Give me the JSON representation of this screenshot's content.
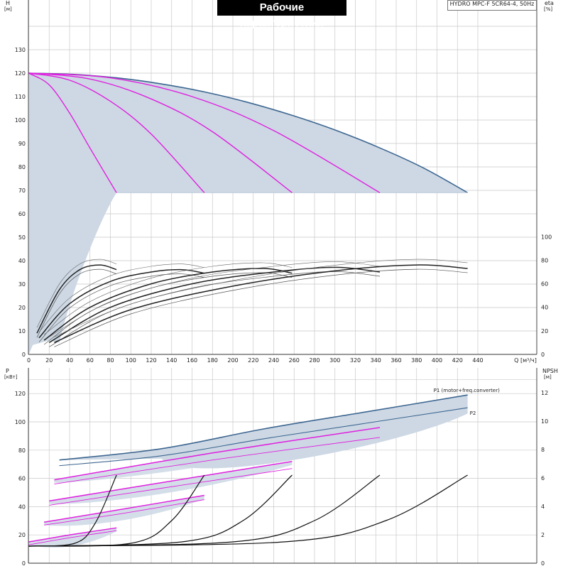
{
  "chart_data": [
    {
      "type": "line",
      "title": "Рабочие характеристики",
      "model_label": "HYDRO MPC-F 5CR64-4, 50Hz",
      "x_label": "Q",
      "x_unit": "[м³/ч]",
      "x_ticks": [
        0,
        20,
        40,
        60,
        80,
        100,
        120,
        140,
        160,
        180,
        200,
        220,
        240,
        260,
        280,
        300,
        320,
        340,
        360,
        380,
        400,
        420,
        440
      ],
      "xlim": [
        0,
        450
      ],
      "y_left_label": "H",
      "y_left_unit": "[м]",
      "y_left_ticks": [
        0,
        10,
        20,
        30,
        40,
        50,
        60,
        70,
        80,
        90,
        100,
        110,
        120,
        130
      ],
      "y_left_lim": [
        0,
        140
      ],
      "y_right_label": "eta",
      "y_right_unit": "[%]",
      "y_right_ticks": [
        0,
        20,
        40,
        60,
        80,
        100
      ],
      "y_right_lim": [
        0,
        100
      ],
      "grid": true,
      "colors": {
        "envelope": "#3d6690",
        "fill": "#cdd8e4",
        "variable": "#e020e0",
        "eta": "#222222"
      },
      "head_envelope": {
        "x": [
          0,
          43,
          86,
          129,
          172,
          215,
          258,
          301,
          344,
          387,
          430
        ],
        "y": [
          120,
          119.5,
          118,
          115.5,
          112,
          107.5,
          102,
          95.6,
          88.1,
          79.5,
          69
        ]
      },
      "head_min": 69,
      "pump_curves": [
        {
          "x": [
            0,
            20,
            40,
            60,
            86
          ],
          "y": [
            120,
            115,
            103,
            88,
            69
          ]
        },
        {
          "x": [
            0,
            40,
            80,
            120,
            172
          ],
          "y": [
            120,
            117,
            108,
            94,
            69
          ]
        },
        {
          "x": [
            0,
            60,
            120,
            180,
            258
          ],
          "y": [
            120,
            117.5,
            109,
            95,
            69
          ]
        },
        {
          "x": [
            0,
            80,
            160,
            240,
            344
          ],
          "y": [
            120,
            118,
            110,
            95.5,
            69
          ]
        }
      ],
      "eta_curves": [
        {
          "x": [
            8,
            30,
            50,
            70,
            86
          ],
          "y": [
            18,
            55,
            72,
            76,
            72
          ]
        },
        {
          "x": [
            10,
            40,
            80,
            120,
            150,
            172
          ],
          "y": [
            14,
            43,
            62,
            70,
            72,
            69
          ]
        },
        {
          "x": [
            15,
            60,
            120,
            180,
            230,
            258
          ],
          "y": [
            12,
            40,
            60,
            70,
            73,
            69
          ]
        },
        {
          "x": [
            20,
            80,
            160,
            240,
            300,
            344
          ],
          "y": [
            10,
            40,
            60,
            70,
            74,
            70
          ]
        },
        {
          "x": [
            25,
            100,
            200,
            300,
            380,
            430
          ],
          "y": [
            10,
            38,
            58,
            71,
            76,
            73
          ]
        }
      ]
    },
    {
      "type": "line",
      "x_ticks": [
        0,
        20,
        40,
        60,
        80,
        100,
        120,
        140,
        160,
        180,
        200,
        220,
        240,
        260,
        280,
        300,
        320,
        340,
        360,
        380,
        400,
        420,
        440
      ],
      "xlim": [
        0,
        450
      ],
      "y_left_label": "P",
      "y_left_unit": "[кВт]",
      "y_left_ticks": [
        0,
        20,
        40,
        60,
        80,
        100,
        120
      ],
      "y_left_lim": [
        0,
        130
      ],
      "y_right_label": "NPSH",
      "y_right_unit": "[м]",
      "y_right_ticks": [
        0,
        2,
        4,
        6,
        8,
        10,
        12
      ],
      "y_right_lim": [
        0,
        13
      ],
      "grid": true,
      "series": [
        {
          "name": "P1 (motor+freq.converter)",
          "x": [
            30,
            130,
            230,
            330,
            430
          ],
          "y": [
            73,
            81,
            95,
            107,
            119
          ]
        },
        {
          "name": "P2",
          "x": [
            30,
            130,
            230,
            330,
            430
          ],
          "y": [
            69,
            76,
            88,
            99,
            110
          ]
        }
      ],
      "power_curves_variable": [
        {
          "x": [
            0,
            40,
            86
          ],
          "y": [
            15,
            20,
            25
          ]
        },
        {
          "x": [
            0,
            40,
            86
          ],
          "y": [
            13,
            18,
            23
          ]
        },
        {
          "x": [
            15,
            90,
            172
          ],
          "y": [
            29,
            38,
            48
          ]
        },
        {
          "x": [
            15,
            90,
            172
          ],
          "y": [
            27,
            35,
            45
          ]
        },
        {
          "x": [
            20,
            130,
            258
          ],
          "y": [
            44,
            57,
            72
          ]
        },
        {
          "x": [
            20,
            130,
            258
          ],
          "y": [
            41,
            53,
            67
          ]
        },
        {
          "x": [
            25,
            180,
            344
          ],
          "y": [
            59,
            78,
            96
          ]
        },
        {
          "x": [
            25,
            180,
            344
          ],
          "y": [
            56,
            73,
            89
          ]
        }
      ],
      "npsh_curves": [
        {
          "x": [
            0,
            45,
            65,
            86
          ],
          "y": [
            1.2,
            1.4,
            2.8,
            6.2
          ]
        },
        {
          "x": [
            0,
            100,
            140,
            172
          ],
          "y": [
            1.2,
            1.4,
            3.0,
            6.2
          ]
        },
        {
          "x": [
            0,
            150,
            210,
            258
          ],
          "y": [
            1.2,
            1.5,
            3.0,
            6.2
          ]
        },
        {
          "x": [
            0,
            200,
            280,
            344
          ],
          "y": [
            1.2,
            1.5,
            3.0,
            6.2
          ]
        },
        {
          "x": [
            0,
            250,
            350,
            430
          ],
          "y": [
            1.2,
            1.5,
            3.0,
            6.2
          ]
        }
      ]
    }
  ]
}
